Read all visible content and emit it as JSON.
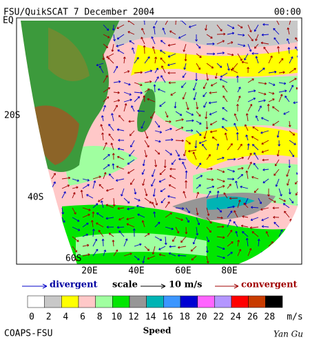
{
  "header": {
    "title": "FSU/QuikSCAT  7 December 2004",
    "time": "00:00"
  },
  "axes": {
    "lat": [
      "EQ",
      "20S",
      "40S",
      "60S"
    ],
    "lon": [
      "20E",
      "40E",
      "60E",
      "80E"
    ]
  },
  "legend": {
    "divergent": "divergent",
    "scale": "scale",
    "scale_value": "10 m/s",
    "convergent": "convergent"
  },
  "colorbar": {
    "labels": [
      "0",
      "2",
      "4",
      "6",
      "8",
      "10",
      "12",
      "14",
      "16",
      "18",
      "20",
      "22",
      "24",
      "26",
      "28"
    ],
    "unit": "m/s",
    "colors": [
      "#ffffff",
      "#c8c8c8",
      "#ffff00",
      "#ffc8c8",
      "#a0ffa0",
      "#00e600",
      "#969696",
      "#00b4b4",
      "#3c96ff",
      "#0000d2",
      "#ff64ff",
      "#b496ff",
      "#ff0000",
      "#c83c00",
      "#000000"
    ]
  },
  "footer": {
    "left": "COAPS-FSU",
    "center": "Speed",
    "right": "Yan Gu"
  }
}
